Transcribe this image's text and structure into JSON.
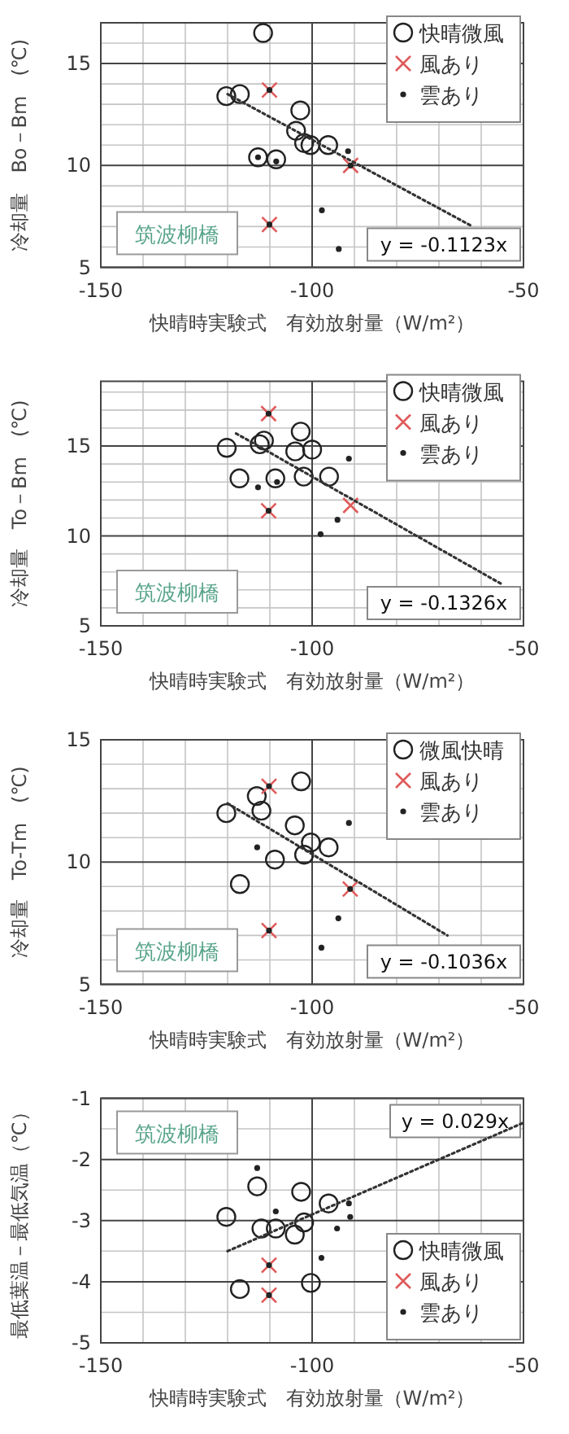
{
  "chart_data": [
    {
      "type": "scatter",
      "xlabel": "快晴時実験式　有効放射量（W/m²）",
      "ylabel": "冷却量　Bo－Bm　(℃)",
      "xlim": [
        -150,
        -50
      ],
      "ylim": [
        5,
        17
      ],
      "xticks": [
        -150,
        {
          "value": -140,
          "label": null
        },
        {
          "value": -130,
          "label": null
        },
        {
          "value": -120,
          "label": null
        },
        {
          "value": -110,
          "label": null
        },
        -100,
        {
          "value": -90,
          "label": null
        },
        {
          "value": -80,
          "label": null
        },
        {
          "value": -70,
          "label": null
        },
        {
          "value": -60,
          "label": null
        },
        -50
      ],
      "yticks": [
        5,
        {
          "value": 6,
          "label": null
        },
        {
          "value": 7,
          "label": null
        },
        {
          "value": 8,
          "label": null
        },
        {
          "value": 9,
          "label": null
        },
        10,
        {
          "value": 11,
          "label": null
        },
        {
          "value": 12,
          "label": null
        },
        {
          "value": 13,
          "label": null
        },
        {
          "value": 14,
          "label": null
        },
        15,
        {
          "value": 16,
          "label": null
        },
        {
          "value": 17,
          "label": null
        }
      ],
      "grid": true,
      "legend": "top right",
      "annotations": [
        "筑波柳橋",
        "y = -0.1123x"
      ],
      "series": [
        {
          "name": "快晴微風",
          "color": "#222222",
          "marker": "circle",
          "x": [
            -111.6,
            -120.3,
            -117.1,
            -102.8,
            -103.8,
            -101.9,
            -100.4,
            -96.2,
            -112.8,
            -108.5
          ],
          "values": [
            16.5,
            13.4,
            13.5,
            12.7,
            11.7,
            11.1,
            11.0,
            11.0,
            10.4,
            10.3
          ]
        },
        {
          "name": "風あり",
          "color": "#e05a5a",
          "marker": "cross",
          "x": [
            -110.1,
            -90.9,
            -110.1
          ],
          "values": [
            13.7,
            10.0,
            7.1
          ]
        },
        {
          "name": "雲あり",
          "color": "#222222",
          "marker": "circle",
          "x": [
            -110.1,
            -110.1,
            -90.9,
            -97.7,
            -93.7,
            -91.5,
            -112.8,
            -108.5
          ],
          "values": [
            13.7,
            7.1,
            10.0,
            7.8,
            5.9,
            10.7,
            10.4,
            10.2
          ]
        },
        {
          "type": "line",
          "color": "#333333",
          "line_style": "dotted",
          "marker": "none",
          "x": [
            -120,
            -62
          ],
          "values": [
            13.5,
            7.0
          ]
        }
      ]
    },
    {
      "type": "scatter",
      "xlabel": "快晴時実験式　有効放射量（W/m²）",
      "ylabel": "冷却量　To－Bm　(℃)",
      "xlim": [
        -150,
        -50
      ],
      "ylim": [
        5,
        18.6
      ],
      "xticks": [
        -150,
        {
          "value": -140,
          "label": null
        },
        {
          "value": -130,
          "label": null
        },
        {
          "value": -120,
          "label": null
        },
        {
          "value": -110,
          "label": null
        },
        -100,
        {
          "value": -90,
          "label": null
        },
        {
          "value": -80,
          "label": null
        },
        {
          "value": -70,
          "label": null
        },
        {
          "value": -60,
          "label": null
        },
        -50
      ],
      "yticks": [
        5,
        {
          "value": 6,
          "label": null
        },
        {
          "value": 7,
          "label": null
        },
        {
          "value": 8,
          "label": null
        },
        {
          "value": 9,
          "label": null
        },
        10,
        {
          "value": 11,
          "label": null
        },
        {
          "value": 12,
          "label": null
        },
        {
          "value": 13,
          "label": null
        },
        {
          "value": 14,
          "label": null
        },
        15,
        {
          "value": 16,
          "label": null
        },
        {
          "value": 17,
          "label": null
        },
        {
          "value": 18,
          "label": null
        }
      ],
      "grid": true,
      "legend": "top right",
      "annotations": [
        "筑波柳橋",
        "y = -0.1326x"
      ],
      "series": [
        {
          "name": "快晴微風",
          "color": "#222222",
          "marker": "circle",
          "x": [
            -120.2,
            -112.4,
            -111.4,
            -102.7,
            -104.0,
            -100,
            -117.2,
            -108.7,
            -102.0,
            -96.0
          ],
          "values": [
            14.9,
            15.1,
            15.3,
            15.8,
            14.7,
            14.8,
            13.2,
            13.2,
            13.3,
            13.3
          ]
        },
        {
          "name": "風あり",
          "color": "#e05a5a",
          "marker": "cross",
          "x": [
            -110.3,
            -110.3,
            -90.9
          ],
          "values": [
            16.8,
            11.4,
            11.7
          ]
        },
        {
          "name": "雲あり",
          "color": "#222222",
          "marker": "circle",
          "x": [
            -110.3,
            -110.3,
            -91.3,
            -112.8,
            -94.0,
            -98.0,
            -108.3
          ],
          "values": [
            16.8,
            11.4,
            14.3,
            12.7,
            10.9,
            10.1,
            13.0
          ]
        },
        {
          "type": "line",
          "color": "#333333",
          "line_style": "dotted",
          "marker": "none",
          "x": [
            -118,
            -55
          ],
          "values": [
            15.7,
            7.3
          ]
        }
      ]
    },
    {
      "type": "scatter",
      "xlabel": "快晴時実験式　有効放射量（W/m²）",
      "ylabel": "冷却量　To-Tm　(℃)",
      "xlim": [
        -150,
        -50
      ],
      "ylim": [
        5,
        15
      ],
      "xticks": [
        -150,
        {
          "value": -140,
          "label": null
        },
        {
          "value": -130,
          "label": null
        },
        {
          "value": -120,
          "label": null
        },
        {
          "value": -110,
          "label": null
        },
        -100,
        {
          "value": -90,
          "label": null
        },
        {
          "value": -80,
          "label": null
        },
        {
          "value": -70,
          "label": null
        },
        {
          "value": -60,
          "label": null
        },
        -50
      ],
      "yticks": [
        5,
        {
          "value": 6,
          "label": null
        },
        {
          "value": 7,
          "label": null
        },
        {
          "value": 8,
          "label": null
        },
        {
          "value": 9,
          "label": null
        },
        10,
        {
          "value": 11,
          "label": null
        },
        {
          "value": 12,
          "label": null
        },
        {
          "value": 13,
          "label": null
        },
        {
          "value": 14,
          "label": null
        },
        15
      ],
      "grid": true,
      "legend": "top right",
      "annotations": [
        "筑波柳橋",
        "y = -0.1036x"
      ],
      "series": [
        {
          "name": "微風快晴",
          "color": "#222222",
          "marker": "circle",
          "x": [
            -120.3,
            -113.1,
            -112.0,
            -102.6,
            -104.1,
            -100.3,
            -101.9,
            -96.1,
            -108.8,
            -117.1
          ],
          "values": [
            12.0,
            12.7,
            12.1,
            13.3,
            11.5,
            10.8,
            10.3,
            10.6,
            10.1,
            9.1
          ]
        },
        {
          "name": "風あり",
          "color": "#e05a5a",
          "marker": "cross",
          "x": [
            -110.2,
            -91.0,
            -110.2
          ],
          "values": [
            13.1,
            8.9,
            7.2
          ]
        },
        {
          "name": "雲あり",
          "color": "#222222",
          "marker": "circle",
          "x": [
            -110.2,
            -110.2,
            -91.0,
            -91.3,
            -113.0,
            -93.8,
            -97.8
          ],
          "values": [
            13.1,
            7.2,
            8.9,
            11.6,
            10.6,
            7.7,
            6.5
          ]
        },
        {
          "type": "line",
          "color": "#333333",
          "line_style": "dotted",
          "marker": "none",
          "x": [
            -120,
            -68
          ],
          "values": [
            12.4,
            7.0
          ]
        }
      ]
    },
    {
      "type": "scatter",
      "xlabel": "快晴時実験式　有効放射量（W/m²）",
      "ylabel": "最低葉温－最低気温（℃）",
      "xlim": [
        -150,
        -50
      ],
      "ylim": [
        -5,
        -1
      ],
      "xticks": [
        -150,
        {
          "value": -140,
          "label": null
        },
        {
          "value": -130,
          "label": null
        },
        {
          "value": -120,
          "label": null
        },
        {
          "value": -110,
          "label": null
        },
        -100,
        {
          "value": -90,
          "label": null
        },
        {
          "value": -80,
          "label": null
        },
        {
          "value": -70,
          "label": null
        },
        {
          "value": -60,
          "label": null
        },
        -50
      ],
      "yticks": [
        -5,
        {
          "value": -4.5,
          "label": null
        },
        -4,
        {
          "value": -3.5,
          "label": null
        },
        -3,
        {
          "value": -2.5,
          "label": null
        },
        -2,
        {
          "value": -1.5,
          "label": null
        },
        -1
      ],
      "grid": true,
      "legend": "bottom right",
      "annotations": [
        "筑波柳橋",
        "y = 0.029x"
      ],
      "series": [
        {
          "name": "快晴微風",
          "color": "#222222",
          "marker": "circle",
          "x": [
            -120.3,
            -113.0,
            -102.6,
            -96.1,
            -101.9,
            -112.0,
            -108.6,
            -104.1,
            -117.1,
            -100.3
          ],
          "values": [
            -2.94,
            -2.44,
            -2.53,
            -2.72,
            -3.03,
            -3.13,
            -3.13,
            -3.23,
            -4.12,
            -4.02
          ]
        },
        {
          "name": "風あり",
          "color": "#e05a5a",
          "marker": "cross",
          "x": [
            -110.2,
            -110.2
          ],
          "values": [
            -3.73,
            -4.22
          ]
        },
        {
          "name": "雲あり",
          "color": "#222222",
          "marker": "circle",
          "x": [
            -110.2,
            -110.2,
            -113.0,
            -108.6,
            -91.3,
            -91.0,
            -94.1,
            -97.8
          ],
          "values": [
            -3.73,
            -4.22,
            -2.14,
            -2.85,
            -2.72,
            -2.94,
            -3.13,
            -3.61
          ]
        },
        {
          "type": "line",
          "color": "#333333",
          "line_style": "dotted",
          "marker": "none",
          "x": [
            -120,
            -50
          ],
          "values": [
            -3.5,
            -1.4
          ]
        }
      ]
    }
  ]
}
